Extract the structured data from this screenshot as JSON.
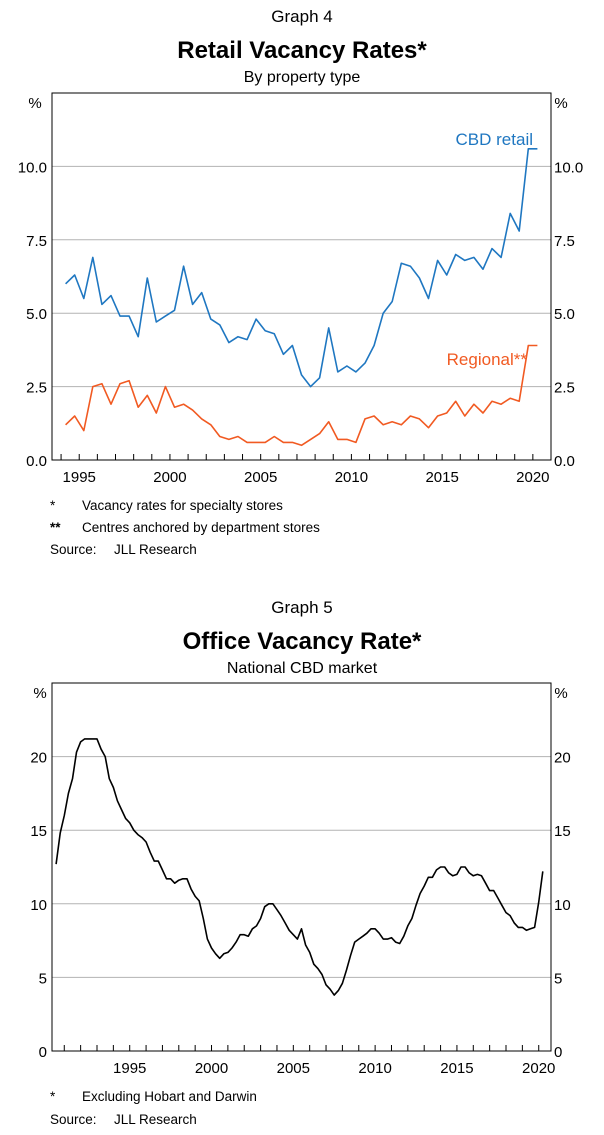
{
  "charts": [
    {
      "graph_label": "Graph 4",
      "title": "Retail Vacancy Rates*",
      "subtitle": "By property type",
      "unit_left": "%",
      "unit_right": "%",
      "footnotes": [
        {
          "mark": "*",
          "text": "Vacancy rates for specialty stores"
        },
        {
          "mark": "**",
          "text": "Centres anchored by department stores"
        }
      ],
      "source_label": "Source:",
      "source_text": "JLL Research"
    },
    {
      "graph_label": "Graph 5",
      "title": "Office Vacancy Rate*",
      "subtitle": "National CBD market",
      "unit_left": "%",
      "unit_right": "%",
      "footnotes": [
        {
          "mark": "*",
          "text": "Excluding Hobart and Darwin"
        }
      ],
      "source_label": "Source:",
      "source_text": "JLL Research"
    }
  ],
  "chart_data": [
    {
      "type": "line",
      "title": "Retail Vacancy Rates*",
      "subtitle": "By property type",
      "xlabel": "",
      "ylabel": "%",
      "xlim": [
        1993.5,
        2021.0
      ],
      "ylim": [
        0,
        12.5
      ],
      "xticks": [
        1995,
        2000,
        2005,
        2010,
        2015,
        2020
      ],
      "xtick_labels": [
        "1995",
        "2000",
        "2005",
        "2010",
        "2015",
        "2020"
      ],
      "yticks": [
        0,
        2.5,
        5,
        7.5,
        10
      ],
      "ytick_labels": [
        "0.0",
        "2.5",
        "5.0",
        "7.5",
        "10.0"
      ],
      "grid": true,
      "series": [
        {
          "name": "CBD retail",
          "color": "#1f77c1",
          "x": [
            1994.25,
            1994.75,
            1995.25,
            1995.75,
            1996.25,
            1996.75,
            1997.25,
            1997.75,
            1998.25,
            1998.75,
            1999.25,
            1999.75,
            2000.25,
            2000.75,
            2001.25,
            2001.75,
            2002.25,
            2002.75,
            2003.25,
            2003.75,
            2004.25,
            2004.75,
            2005.25,
            2005.75,
            2006.25,
            2006.75,
            2007.25,
            2007.75,
            2008.25,
            2008.75,
            2009.25,
            2009.75,
            2010.25,
            2010.75,
            2011.25,
            2011.75,
            2012.25,
            2012.75,
            2013.25,
            2013.75,
            2014.25,
            2014.75,
            2015.25,
            2015.75,
            2016.25,
            2016.75,
            2017.25,
            2017.75,
            2018.25,
            2018.75,
            2019.25,
            2019.75,
            2020.25
          ],
          "values": [
            6.0,
            6.3,
            5.5,
            6.9,
            5.3,
            5.6,
            4.9,
            4.9,
            4.2,
            6.2,
            4.7,
            4.9,
            5.1,
            6.6,
            5.3,
            5.7,
            4.8,
            4.6,
            4.0,
            4.2,
            4.1,
            4.8,
            4.4,
            4.3,
            3.6,
            3.9,
            2.9,
            2.5,
            2.8,
            4.5,
            3.0,
            3.2,
            3.0,
            3.3,
            3.9,
            5.0,
            5.4,
            6.7,
            6.6,
            6.2,
            5.5,
            6.8,
            6.3,
            7.0,
            6.8,
            6.9,
            6.5,
            7.2,
            6.9,
            8.4,
            7.8,
            10.6,
            10.6
          ]
        },
        {
          "name": "Regional**",
          "color": "#f15a22",
          "x": [
            1994.25,
            1994.75,
            1995.25,
            1995.75,
            1996.25,
            1996.75,
            1997.25,
            1997.75,
            1998.25,
            1998.75,
            1999.25,
            1999.75,
            2000.25,
            2000.75,
            2001.25,
            2001.75,
            2002.25,
            2002.75,
            2003.25,
            2003.75,
            2004.25,
            2004.75,
            2005.25,
            2005.75,
            2006.25,
            2006.75,
            2007.25,
            2007.75,
            2008.25,
            2008.75,
            2009.25,
            2009.75,
            2010.25,
            2010.75,
            2011.25,
            2011.75,
            2012.25,
            2012.75,
            2013.25,
            2013.75,
            2014.25,
            2014.75,
            2015.25,
            2015.75,
            2016.25,
            2016.75,
            2017.25,
            2017.75,
            2018.25,
            2018.75,
            2019.25,
            2019.75,
            2020.25
          ],
          "values": [
            1.2,
            1.5,
            1.0,
            2.5,
            2.6,
            1.9,
            2.6,
            2.7,
            1.8,
            2.2,
            1.6,
            2.5,
            1.8,
            1.9,
            1.7,
            1.4,
            1.2,
            0.8,
            0.7,
            0.8,
            0.6,
            0.6,
            0.6,
            0.8,
            0.6,
            0.6,
            0.5,
            0.7,
            0.9,
            1.3,
            0.7,
            0.7,
            0.6,
            1.4,
            1.5,
            1.2,
            1.3,
            1.2,
            1.5,
            1.4,
            1.1,
            1.5,
            1.6,
            2.0,
            1.5,
            1.9,
            1.6,
            2.0,
            1.9,
            2.1,
            2.0,
            3.9,
            3.9
          ]
        }
      ],
      "annotations": [
        {
          "text": "CBD retail",
          "series": "CBD retail"
        },
        {
          "text": "Regional**",
          "series": "Regional**"
        }
      ]
    },
    {
      "type": "line",
      "title": "Office Vacancy Rate*",
      "subtitle": "National CBD market",
      "xlabel": "",
      "ylabel": "%",
      "xlim": [
        1990.25,
        2020.75
      ],
      "ylim": [
        0,
        25
      ],
      "xticks": [
        1995,
        2000,
        2005,
        2010,
        2015,
        2020
      ],
      "xtick_labels": [
        "1995",
        "2000",
        "2005",
        "2010",
        "2015",
        "2020"
      ],
      "yticks": [
        0,
        5,
        10,
        15,
        20
      ],
      "ytick_labels": [
        "0",
        "5",
        "10",
        "15",
        "20"
      ],
      "grid": true,
      "series": [
        {
          "name": "Office vacancy rate",
          "color": "#000000",
          "x": [
            1990.5,
            1990.75,
            1991.0,
            1991.25,
            1991.5,
            1991.75,
            1992.0,
            1992.25,
            1992.5,
            1992.75,
            1993.0,
            1993.25,
            1993.5,
            1993.75,
            1994.0,
            1994.25,
            1994.5,
            1994.75,
            1995.0,
            1995.25,
            1995.5,
            1995.75,
            1996.0,
            1996.25,
            1996.5,
            1996.75,
            1997.0,
            1997.25,
            1997.5,
            1997.75,
            1998.0,
            1998.25,
            1998.5,
            1998.75,
            1999.0,
            1999.25,
            1999.5,
            1999.75,
            2000.0,
            2000.25,
            2000.5,
            2000.75,
            2001.0,
            2001.25,
            2001.5,
            2001.75,
            2002.0,
            2002.25,
            2002.5,
            2002.75,
            2003.0,
            2003.25,
            2003.5,
            2003.75,
            2004.0,
            2004.25,
            2004.5,
            2004.75,
            2005.0,
            2005.25,
            2005.5,
            2005.75,
            2006.0,
            2006.25,
            2006.5,
            2006.75,
            2007.0,
            2007.25,
            2007.5,
            2007.75,
            2008.0,
            2008.25,
            2008.5,
            2008.75,
            2009.0,
            2009.25,
            2009.5,
            2009.75,
            2010.0,
            2010.25,
            2010.5,
            2010.75,
            2011.0,
            2011.25,
            2011.5,
            2011.75,
            2012.0,
            2012.25,
            2012.5,
            2012.75,
            2013.0,
            2013.25,
            2013.5,
            2013.75,
            2014.0,
            2014.25,
            2014.5,
            2014.75,
            2015.0,
            2015.25,
            2015.5,
            2015.75,
            2016.0,
            2016.25,
            2016.5,
            2016.75,
            2017.0,
            2017.25,
            2017.5,
            2017.75,
            2018.0,
            2018.25,
            2018.5,
            2018.75,
            2019.0,
            2019.25,
            2019.5,
            2019.75,
            2020.0,
            2020.25
          ],
          "values": [
            12.7,
            14.8,
            16.0,
            17.5,
            18.5,
            20.3,
            21.0,
            21.2,
            21.2,
            21.2,
            21.2,
            20.5,
            20.0,
            18.5,
            17.9,
            17.0,
            16.4,
            15.8,
            15.5,
            15.0,
            14.7,
            14.5,
            14.2,
            13.5,
            12.9,
            12.9,
            12.3,
            11.7,
            11.7,
            11.4,
            11.6,
            11.7,
            11.7,
            11.0,
            10.5,
            10.2,
            9.0,
            7.6,
            7.0,
            6.6,
            6.3,
            6.6,
            6.7,
            7.0,
            7.4,
            7.9,
            7.9,
            7.8,
            8.3,
            8.5,
            9.0,
            9.8,
            10.0,
            10.0,
            9.6,
            9.2,
            8.7,
            8.2,
            7.9,
            7.6,
            8.3,
            7.2,
            6.7,
            5.9,
            5.6,
            5.2,
            4.5,
            4.2,
            3.8,
            4.1,
            4.6,
            5.5,
            6.5,
            7.4,
            7.6,
            7.8,
            8.0,
            8.3,
            8.3,
            8.0,
            7.6,
            7.6,
            7.7,
            7.4,
            7.3,
            7.8,
            8.5,
            9.0,
            9.9,
            10.7,
            11.2,
            11.8,
            11.8,
            12.3,
            12.5,
            12.5,
            12.1,
            11.9,
            12.0,
            12.5,
            12.5,
            12.1,
            11.9,
            12.0,
            11.9,
            11.4,
            10.9,
            10.9,
            10.4,
            9.9,
            9.4,
            9.2,
            8.7,
            8.4,
            8.4,
            8.2,
            8.3,
            8.4,
            10.1,
            12.2
          ]
        }
      ]
    }
  ]
}
